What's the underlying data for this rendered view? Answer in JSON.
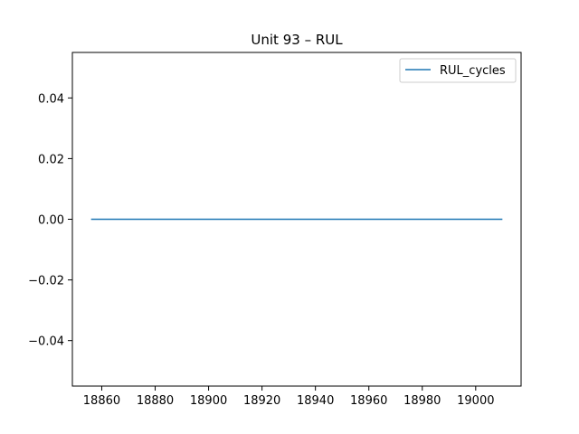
{
  "chart_data": {
    "type": "line",
    "title": "Unit 93  –  RUL",
    "xlabel": "",
    "ylabel": "",
    "xlim": [
      18849,
      19017
    ],
    "ylim": [
      -0.055,
      0.055
    ],
    "x_ticks": [
      18860,
      18880,
      18900,
      18920,
      18940,
      18960,
      18980,
      19000
    ],
    "y_ticks": [
      -0.04,
      -0.02,
      0.0,
      0.02,
      0.04
    ],
    "y_tick_labels": [
      "−0.04",
      "−0.02",
      "0.00",
      "0.02",
      "0.04"
    ],
    "grid": false,
    "legend": {
      "placement": "top-right",
      "entries": [
        "RUL_cycles"
      ]
    },
    "series": [
      {
        "name": "RUL_cycles",
        "color": "#1f77b4",
        "x": [
          18856,
          19010
        ],
        "y": [
          0,
          0
        ]
      }
    ]
  }
}
